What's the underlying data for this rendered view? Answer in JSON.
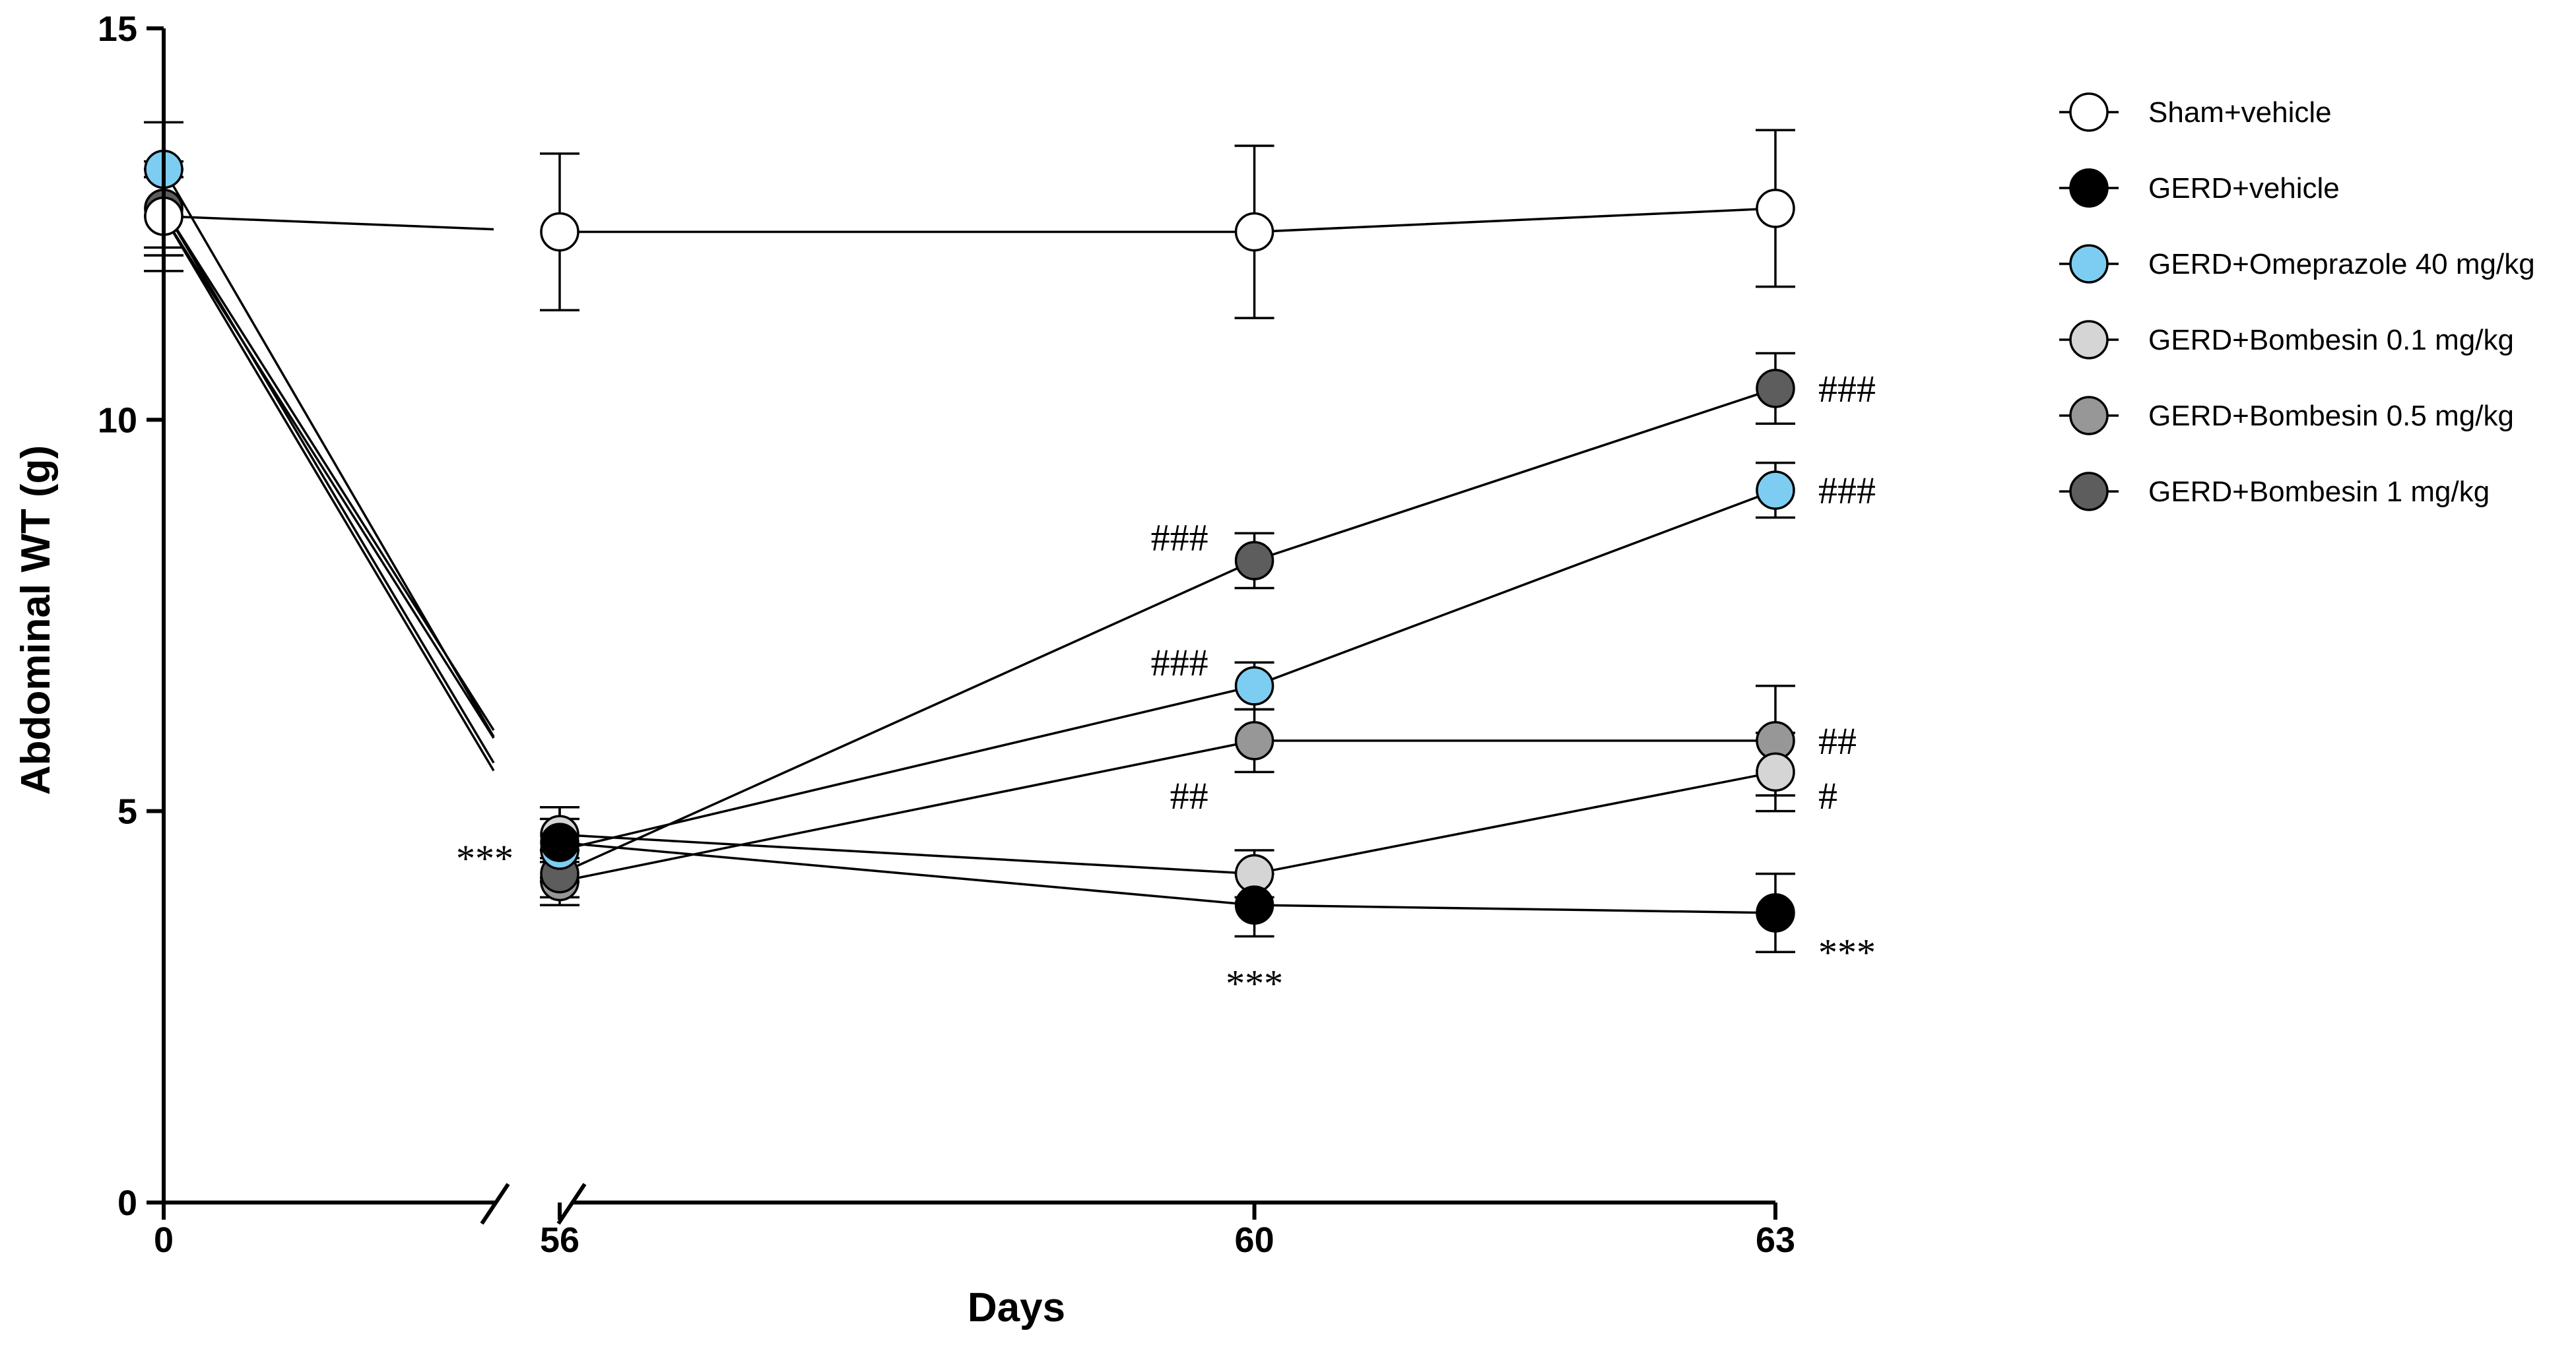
{
  "chart_data": {
    "type": "line",
    "title": "",
    "xlabel": "Days",
    "ylabel": "Abdominal WT (g)",
    "ylim": [
      0,
      15
    ],
    "yticks": [
      0,
      5,
      10,
      15
    ],
    "x": [
      0,
      56,
      60,
      63
    ],
    "xtick_labels": [
      "0",
      "56",
      "60",
      "63"
    ],
    "axis_break": "between 0 and 56",
    "series": [
      {
        "name": "Sham+vehicle",
        "fill": "#ffffff",
        "values": [
          12.6,
          12.4,
          12.4,
          12.7
        ],
        "errors": [
          0.7,
          1.0,
          1.1,
          1.0
        ]
      },
      {
        "name": "GERD+vehicle",
        "fill": "#000000",
        "values": [
          12.6,
          4.6,
          3.8,
          3.7
        ],
        "errors": [
          0.5,
          0.45,
          0.4,
          0.5
        ]
      },
      {
        "name": "GERD+Omeprazole 40 mg/kg",
        "fill": "#7dcdf2",
        "values": [
          13.2,
          4.5,
          6.6,
          9.1
        ],
        "errors": [
          0.6,
          0.4,
          0.3,
          0.35
        ]
      },
      {
        "name": "GERD+Bombesin 0.1 mg/kg",
        "fill": "#d5d5d5",
        "values": [
          12.7,
          4.7,
          4.2,
          5.5
        ],
        "errors": [
          0.5,
          0.35,
          0.3,
          0.5
        ]
      },
      {
        "name": "GERD+Bombesin 0.5 mg/kg",
        "fill": "#979797",
        "values": [
          12.6,
          4.1,
          5.9,
          5.9
        ],
        "errors": [
          0.5,
          0.3,
          0.4,
          0.7
        ]
      },
      {
        "name": "GERD+Bombesin 1 mg/kg",
        "fill": "#5d5d5d",
        "values": [
          12.7,
          4.2,
          8.2,
          10.4
        ],
        "errors": [
          0.5,
          0.3,
          0.35,
          0.45
        ]
      }
    ],
    "annotations": [
      {
        "text": "***",
        "x": 56,
        "y": 4.4,
        "side": "left"
      },
      {
        "text": "***",
        "x": 60,
        "y": 2.8,
        "side": "below"
      },
      {
        "text": "***",
        "x": 63,
        "y": 3.2,
        "side": "right"
      },
      {
        "text": "###",
        "x": 60,
        "y": 8.5,
        "side": "left"
      },
      {
        "text": "###",
        "x": 60,
        "y": 6.9,
        "side": "left"
      },
      {
        "text": "##",
        "x": 60,
        "y": 5.2,
        "side": "left"
      },
      {
        "text": "###",
        "x": 63,
        "y": 10.4,
        "side": "right"
      },
      {
        "text": "###",
        "x": 63,
        "y": 9.1,
        "side": "right"
      },
      {
        "text": "##",
        "x": 63,
        "y": 5.9,
        "side": "right"
      },
      {
        "text": "#",
        "x": 63,
        "y": 5.2,
        "side": "right"
      }
    ],
    "legend_position": "top-right",
    "grid": false
  }
}
